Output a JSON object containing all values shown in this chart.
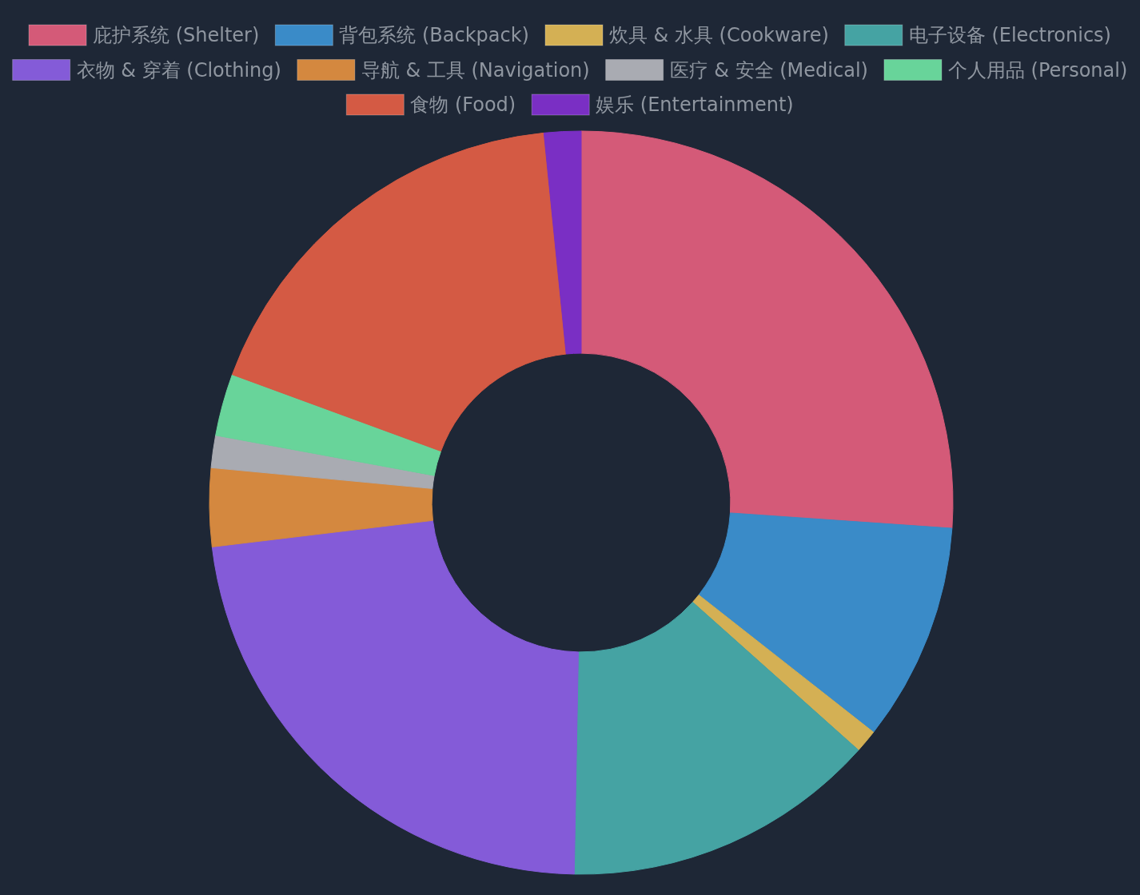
{
  "chart_data": {
    "type": "donut",
    "legend": "top",
    "categories": [
      "庇护系统 (Shelter)",
      "背包系统 (Backpack)",
      "炊具 & 水具 (Cookware)",
      "电子设备 (Electronics)",
      "衣物 & 穿着 (Clothing)",
      "导航 & 工具 (Navigation)",
      "医疗 & 安全 (Medical)",
      "个人用品 (Personal)",
      "食物 (Food)",
      "娱乐 (Entertainment)"
    ],
    "values": [
      26.1,
      9.5,
      1.0,
      13.7,
      22.8,
      3.4,
      1.4,
      2.7,
      17.8,
      1.6
    ],
    "colors": [
      "#d45a78",
      "#3a8bc8",
      "#d4b054",
      "#45a3a3",
      "#845bd8",
      "#d4883f",
      "#a9abb2",
      "#68d49a",
      "#d45a44",
      "#7a2fc4"
    ]
  }
}
